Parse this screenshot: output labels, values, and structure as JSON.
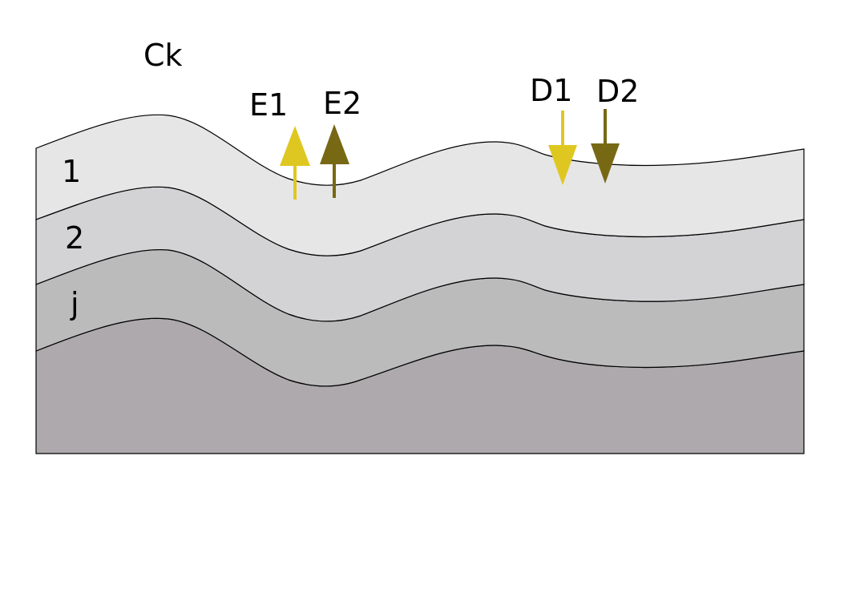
{
  "labels": {
    "top": "Ck",
    "layer_1": "1",
    "layer_2": "2",
    "layer_j": "j",
    "e1": "E1",
    "e2": "E2",
    "d1": "D1",
    "d2": "D2"
  },
  "colors": {
    "layer_1": "#e6e6e6",
    "layer_2": "#d3d2d5",
    "layer_j": "#bcbbbc",
    "substrate": "#ada9ac",
    "outline": "#000000",
    "light_arrow": "#dfc721",
    "dark_arrow": "#776814"
  },
  "arrows": {
    "e1": {
      "direction": "up",
      "color": "light_arrow"
    },
    "e2": {
      "direction": "up",
      "color": "dark_arrow"
    },
    "d1": {
      "direction": "down",
      "color": "light_arrow"
    },
    "d2": {
      "direction": "down",
      "color": "dark_arrow"
    }
  }
}
